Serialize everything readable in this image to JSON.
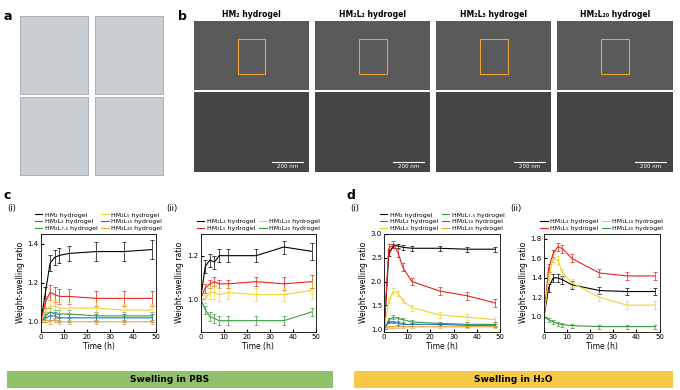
{
  "panel_a": {
    "label": "a"
  },
  "panel_b": {
    "label": "b",
    "columns": [
      {
        "title": "HM₂ hydrogel",
        "scale_bar": "200 nm"
      },
      {
        "title": "HM₂L₂ hydrogel",
        "scale_bar": "200 nm"
      },
      {
        "title": "HM₂L₅ hydrogel",
        "scale_bar": "200 nm"
      },
      {
        "title": "HM₂L₂₀ hydrogel",
        "scale_bar": "200 nm"
      }
    ]
  },
  "panel_c": {
    "label": "c"
  },
  "panel_d": {
    "label": "d"
  },
  "banners": [
    {
      "text": "Swelling in PBS",
      "color": "#8fc26a"
    },
    {
      "text": "Swelling in H₂O",
      "color": "#f6c945"
    }
  ],
  "chart_data": [
    {
      "type": "line",
      "panel": "c",
      "subpanel": "(i)",
      "x_label": "Time (h)",
      "y_label": "Weight-swelling ratio",
      "x": [
        0,
        2,
        4,
        6,
        8,
        12,
        24,
        36,
        48
      ],
      "xlim": [
        0,
        50
      ],
      "xticks": [
        0,
        10,
        20,
        30,
        40,
        50
      ],
      "ylim": [
        0.95,
        1.45
      ],
      "yticks": [
        1.0,
        1.2,
        1.4
      ],
      "series": [
        {
          "name": "HM₂ hydrogel",
          "color": "#000000",
          "values": [
            1.0,
            1.15,
            1.3,
            1.33,
            1.34,
            1.35,
            1.36,
            1.36,
            1.37
          ],
          "errors": [
            0.0,
            0.03,
            0.04,
            0.04,
            0.04,
            0.04,
            0.05,
            0.05,
            0.05
          ]
        },
        {
          "name": "HM₂L₂ hydrogel",
          "color": "#e8231b",
          "values": [
            1.0,
            1.1,
            1.15,
            1.14,
            1.13,
            1.13,
            1.12,
            1.12,
            1.12
          ],
          "errors": [
            0.0,
            0.03,
            0.04,
            0.04,
            0.04,
            0.04,
            0.04,
            0.04,
            0.04
          ]
        },
        {
          "name": "HM₂L₇.₅ hydrogel",
          "color": "#3a9b3a",
          "values": [
            1.0,
            1.03,
            1.05,
            1.04,
            1.04,
            1.04,
            1.03,
            1.03,
            1.03
          ],
          "errors": [
            0.0,
            0.02,
            0.02,
            0.02,
            0.02,
            0.02,
            0.02,
            0.02,
            0.02
          ]
        },
        {
          "name": "HM₂L₅ hydrogel",
          "color": "#f2d22e",
          "values": [
            1.0,
            1.05,
            1.08,
            1.08,
            1.07,
            1.07,
            1.07,
            1.06,
            1.06
          ],
          "errors": [
            0.0,
            0.03,
            0.03,
            0.03,
            0.03,
            0.03,
            0.03,
            0.03,
            0.03
          ]
        },
        {
          "name": "HM₂L₁₀ hydrogel",
          "color": "#1f6fd1",
          "values": [
            1.0,
            1.02,
            1.03,
            1.03,
            1.02,
            1.02,
            1.02,
            1.02,
            1.02
          ],
          "errors": [
            0.0,
            0.02,
            0.02,
            0.02,
            0.02,
            0.02,
            0.02,
            0.02,
            0.02
          ]
        },
        {
          "name": "HM₂L₂₀ hydrogel",
          "color": "#f0a030",
          "values": [
            1.0,
            1.01,
            1.0,
            1.01,
            1.0,
            1.0,
            1.0,
            1.0,
            1.0
          ],
          "errors": [
            0.0,
            0.01,
            0.01,
            0.01,
            0.01,
            0.01,
            0.01,
            0.01,
            0.01
          ]
        }
      ]
    },
    {
      "type": "line",
      "panel": "c",
      "subpanel": "(ii)",
      "x_label": "Time (h)",
      "y_label": "Weight-swelling ratio",
      "x": [
        0,
        2,
        4,
        6,
        8,
        12,
        24,
        36,
        48
      ],
      "xlim": [
        0,
        50
      ],
      "xticks": [
        0,
        10,
        20,
        30,
        40,
        50
      ],
      "ylim": [
        0.85,
        1.3
      ],
      "yticks": [
        1.0,
        1.2
      ],
      "series": [
        {
          "name": "HM₁L₂ hydrogel",
          "color": "#000000",
          "values": [
            1.0,
            1.15,
            1.18,
            1.17,
            1.2,
            1.2,
            1.2,
            1.24,
            1.22
          ],
          "errors": [
            0.0,
            0.03,
            0.03,
            0.03,
            0.03,
            0.03,
            0.03,
            0.03,
            0.04
          ]
        },
        {
          "name": "HM₁L₅ hydrogel",
          "color": "#e8231b",
          "values": [
            1.0,
            1.05,
            1.07,
            1.08,
            1.07,
            1.07,
            1.08,
            1.07,
            1.08
          ],
          "errors": [
            0.0,
            0.02,
            0.02,
            0.02,
            0.02,
            0.02,
            0.02,
            0.03,
            0.03
          ]
        },
        {
          "name": "HM₁L₁₀ hydrogel",
          "color": "#f2d22e",
          "values": [
            1.0,
            1.0,
            1.03,
            1.03,
            1.02,
            1.03,
            1.02,
            1.02,
            1.04
          ],
          "errors": [
            0.0,
            0.02,
            0.03,
            0.03,
            0.03,
            0.03,
            0.03,
            0.03,
            0.04
          ]
        },
        {
          "name": "HM₁L₂₀ hydrogel",
          "color": "#3a9b3a",
          "values": [
            1.0,
            0.95,
            0.92,
            0.91,
            0.9,
            0.9,
            0.9,
            0.9,
            0.94
          ],
          "errors": [
            0.0,
            0.02,
            0.02,
            0.02,
            0.02,
            0.02,
            0.02,
            0.02,
            0.02
          ]
        }
      ]
    },
    {
      "type": "line",
      "panel": "d",
      "subpanel": "(i)",
      "x_label": "Time (h)",
      "y_label": "Weight-swelling ratio",
      "x": [
        0,
        2,
        4,
        6,
        8,
        12,
        24,
        36,
        48
      ],
      "xlim": [
        0,
        50
      ],
      "xticks": [
        0,
        10,
        20,
        30,
        40,
        50
      ],
      "ylim": [
        0.95,
        3.0
      ],
      "yticks": [
        1.0,
        1.5,
        2.0,
        2.5,
        3.0
      ],
      "series": [
        {
          "name": "HM₂ hydrogel",
          "color": "#000000",
          "values": [
            1.0,
            2.6,
            2.75,
            2.75,
            2.72,
            2.7,
            2.7,
            2.68,
            2.68
          ],
          "errors": [
            0.0,
            0.06,
            0.05,
            0.05,
            0.05,
            0.05,
            0.05,
            0.05,
            0.05
          ]
        },
        {
          "name": "HM₂L₂ hydrogel",
          "color": "#e8231b",
          "values": [
            1.0,
            2.7,
            2.78,
            2.6,
            2.3,
            2.0,
            1.8,
            1.7,
            1.55
          ],
          "errors": [
            0.0,
            0.08,
            0.08,
            0.08,
            0.08,
            0.08,
            0.08,
            0.08,
            0.08
          ]
        },
        {
          "name": "HM₂L₅ hydrogel",
          "color": "#f2d22e",
          "values": [
            1.0,
            1.6,
            1.8,
            1.75,
            1.6,
            1.45,
            1.3,
            1.25,
            1.2
          ],
          "errors": [
            0.0,
            0.06,
            0.06,
            0.06,
            0.06,
            0.06,
            0.06,
            0.06,
            0.06
          ]
        },
        {
          "name": "HM₂L₇.₅ hydrogel",
          "color": "#3a9b3a",
          "values": [
            1.0,
            1.2,
            1.25,
            1.22,
            1.2,
            1.15,
            1.12,
            1.1,
            1.1
          ],
          "errors": [
            0.0,
            0.04,
            0.04,
            0.04,
            0.04,
            0.04,
            0.04,
            0.04,
            0.04
          ]
        },
        {
          "name": "HM₂L₁₀ hydrogel",
          "color": "#1f6fd1",
          "values": [
            1.0,
            1.15,
            1.15,
            1.12,
            1.1,
            1.1,
            1.1,
            1.08,
            1.08
          ],
          "errors": [
            0.0,
            0.03,
            0.03,
            0.03,
            0.03,
            0.03,
            0.03,
            0.03,
            0.03
          ]
        },
        {
          "name": "HM₂L₂₀ hydrogel",
          "color": "#f0a030",
          "values": [
            1.0,
            1.05,
            1.05,
            1.05,
            1.05,
            1.05,
            1.05,
            1.05,
            1.05
          ],
          "errors": [
            0.0,
            0.02,
            0.02,
            0.02,
            0.02,
            0.02,
            0.02,
            0.02,
            0.02
          ]
        }
      ]
    },
    {
      "type": "line",
      "panel": "d",
      "subpanel": "(ii)",
      "x_label": "Time (h)",
      "y_label": "Weight-swelling ratio",
      "x": [
        0,
        2,
        4,
        6,
        8,
        12,
        24,
        36,
        48
      ],
      "xlim": [
        0,
        50
      ],
      "xticks": [
        0,
        10,
        20,
        30,
        40,
        50
      ],
      "ylim": [
        0.85,
        1.85
      ],
      "yticks": [
        1.0,
        1.2,
        1.4,
        1.6,
        1.8
      ],
      "series": [
        {
          "name": "HM₁L₂ hydrogel",
          "color": "#000000",
          "values": [
            1.0,
            1.3,
            1.4,
            1.4,
            1.38,
            1.33,
            1.27,
            1.26,
            1.26
          ],
          "errors": [
            0.0,
            0.04,
            0.04,
            0.04,
            0.04,
            0.04,
            0.04,
            0.04,
            0.04
          ]
        },
        {
          "name": "HM₁L₅ hydrogel",
          "color": "#e8231b",
          "values": [
            1.0,
            1.5,
            1.65,
            1.72,
            1.7,
            1.6,
            1.45,
            1.42,
            1.42
          ],
          "errors": [
            0.0,
            0.04,
            0.04,
            0.04,
            0.04,
            0.04,
            0.04,
            0.04,
            0.04
          ]
        },
        {
          "name": "HM₁L₁₀ hydrogel",
          "color": "#f2d22e",
          "values": [
            1.0,
            1.4,
            1.6,
            1.58,
            1.45,
            1.35,
            1.2,
            1.12,
            1.12
          ],
          "errors": [
            0.0,
            0.04,
            0.04,
            0.04,
            0.04,
            0.04,
            0.04,
            0.04,
            0.04
          ]
        },
        {
          "name": "HM₁L₂₀ hydrogel",
          "color": "#3a9b3a",
          "values": [
            1.0,
            0.97,
            0.95,
            0.93,
            0.92,
            0.91,
            0.9,
            0.9,
            0.9
          ],
          "errors": [
            0.0,
            0.02,
            0.02,
            0.02,
            0.02,
            0.02,
            0.02,
            0.02,
            0.02
          ]
        }
      ]
    }
  ]
}
